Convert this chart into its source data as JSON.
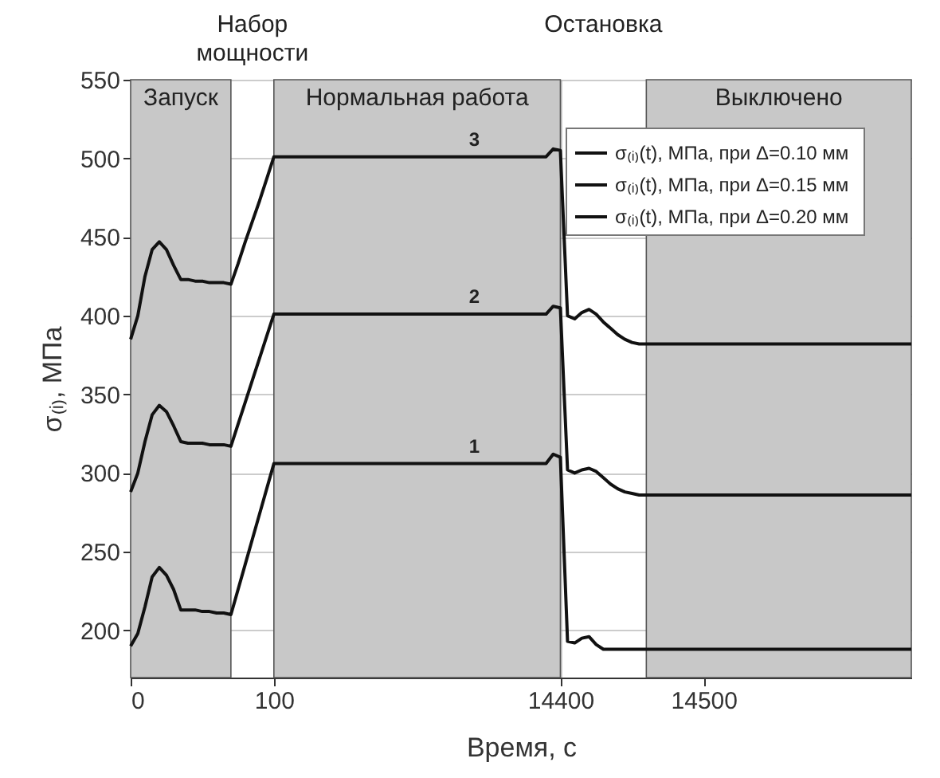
{
  "chart_data": {
    "type": "line",
    "xlabel": "Время, с",
    "ylabel": "σ₍ᵢ₎, МПа",
    "categories": [
      "0",
      null,
      null,
      null,
      null,
      null,
      null,
      null,
      null,
      null,
      null,
      null,
      null,
      null,
      null,
      null,
      null,
      null,
      null,
      null,
      "100",
      null,
      null,
      null,
      null,
      null,
      null,
      null,
      null,
      null,
      null,
      null,
      null,
      null,
      null,
      null,
      null,
      null,
      null,
      null,
      null,
      null,
      null,
      null,
      null,
      null,
      null,
      null,
      null,
      null,
      null,
      null,
      null,
      null,
      null,
      null,
      null,
      null,
      null,
      null,
      "14400",
      null,
      null,
      null,
      null,
      null,
      null,
      null,
      null,
      null,
      null,
      null,
      null,
      null,
      null,
      null,
      null,
      null,
      null,
      null,
      "14500",
      null,
      null,
      null,
      null,
      null,
      null,
      null,
      null,
      null,
      null,
      null,
      null,
      null,
      null,
      null,
      null,
      null,
      null,
      null,
      null,
      null,
      null,
      null,
      null,
      null,
      null,
      null,
      null,
      null
    ],
    "series": [
      {
        "name": "σ₍ᵢ₎(t), МПа, при Δ=0.10  мм",
        "color": "#111111",
        "values": [
          190,
          198,
          215,
          234,
          240,
          235,
          226,
          213,
          213,
          213,
          212,
          212,
          211,
          211,
          210,
          226,
          242,
          258,
          274,
          290,
          306,
          306,
          306,
          306,
          306,
          306,
          306,
          306,
          306,
          306,
          306,
          306,
          306,
          306,
          306,
          306,
          306,
          306,
          306,
          306,
          306,
          306,
          306,
          306,
          306,
          306,
          306,
          306,
          306,
          306,
          306,
          306,
          306,
          306,
          306,
          306,
          306,
          306,
          306,
          312,
          310,
          193,
          192,
          195,
          196,
          191,
          188,
          188,
          188,
          188,
          188,
          188,
          188,
          188,
          188,
          188,
          188,
          188,
          188,
          188,
          188,
          188,
          188,
          188,
          188,
          188,
          188,
          188,
          188,
          188,
          188,
          188,
          188,
          188,
          188,
          188,
          188,
          188,
          188,
          188,
          188,
          188,
          188,
          188,
          188,
          188,
          188,
          188,
          188,
          188
        ]
      },
      {
        "name": "σ₍ᵢ₎(t), МПа, при Δ=0.15  мм",
        "color": "#111111",
        "values": [
          288,
          300,
          320,
          337,
          343,
          339,
          330,
          320,
          319,
          319,
          319,
          318,
          318,
          318,
          317,
          331,
          345,
          359,
          373,
          387,
          401,
          401,
          401,
          401,
          401,
          401,
          401,
          401,
          401,
          401,
          401,
          401,
          401,
          401,
          401,
          401,
          401,
          401,
          401,
          401,
          401,
          401,
          401,
          401,
          401,
          401,
          401,
          401,
          401,
          401,
          401,
          401,
          401,
          401,
          401,
          401,
          401,
          401,
          401,
          406,
          405,
          302,
          300,
          302,
          303,
          301,
          297,
          293,
          290,
          288,
          287,
          286,
          286,
          286,
          286,
          286,
          286,
          286,
          286,
          286,
          286,
          286,
          286,
          286,
          286,
          286,
          286,
          286,
          286,
          286,
          286,
          286,
          286,
          286,
          286,
          286,
          286,
          286,
          286,
          286,
          286,
          286,
          286,
          286,
          286,
          286,
          286,
          286,
          286,
          286
        ]
      },
      {
        "name": "σ₍ᵢ₎(t), МПа, при Δ=0.20  мм",
        "color": "#111111",
        "values": [
          385,
          400,
          425,
          442,
          447,
          442,
          432,
          423,
          423,
          422,
          422,
          421,
          421,
          421,
          420,
          433,
          447,
          460,
          473,
          487,
          501,
          501,
          501,
          501,
          501,
          501,
          501,
          501,
          501,
          501,
          501,
          501,
          501,
          501,
          501,
          501,
          501,
          501,
          501,
          501,
          501,
          501,
          501,
          501,
          501,
          501,
          501,
          501,
          501,
          501,
          501,
          501,
          501,
          501,
          501,
          501,
          501,
          501,
          501,
          506,
          505,
          400,
          398,
          402,
          404,
          401,
          396,
          392,
          388,
          385,
          383,
          382,
          382,
          382,
          382,
          382,
          382,
          382,
          382,
          382,
          382,
          382,
          382,
          382,
          382,
          382,
          382,
          382,
          382,
          382,
          382,
          382,
          382,
          382,
          382,
          382,
          382,
          382,
          382,
          382,
          382,
          382,
          382,
          382,
          382,
          382,
          382,
          382,
          382,
          382
        ]
      }
    ],
    "ylim": [
      170,
      550
    ],
    "yticks": [
      200,
      250,
      300,
      350,
      400,
      450,
      500,
      550
    ],
    "grid": true,
    "legend": "top right",
    "annotations": [
      "Запуск",
      "Набор мощности",
      "Нормальная работа",
      "Остановка",
      "Выключено",
      {
        "text": "1",
        "y": 306
      },
      {
        "text": "2",
        "y": 401
      },
      {
        "text": "3",
        "y": 501
      }
    ]
  }
}
